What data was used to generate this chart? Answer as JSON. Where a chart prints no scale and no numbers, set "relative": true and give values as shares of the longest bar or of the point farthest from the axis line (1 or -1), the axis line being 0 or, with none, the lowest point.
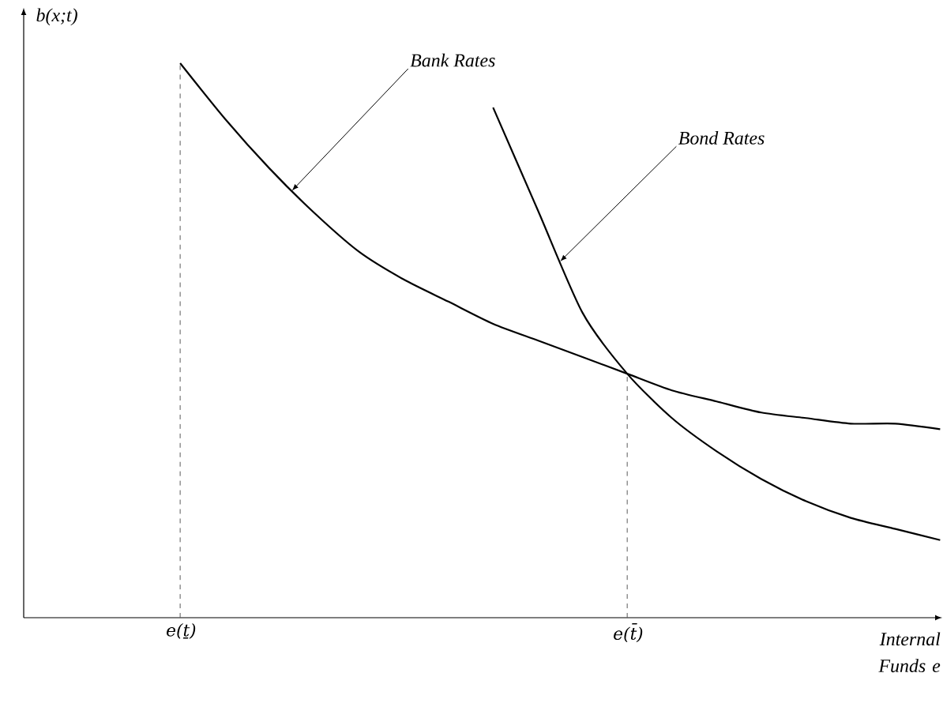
{
  "chart_data": {
    "type": "line",
    "relative": true,
    "xlabel": "Internal Funds e",
    "ylabel": "b(x;t)",
    "categories": [
      "e(ṯ)",
      null,
      null,
      null,
      null,
      null,
      null,
      null,
      null,
      null,
      "e(t̄)",
      null,
      null,
      null,
      null,
      null,
      null,
      null
    ],
    "series": [
      {
        "color": "#000000",
        "values": [
          1.0,
          0.9,
          0.81,
          0.73,
          0.66,
          0.61,
          0.57,
          0.53,
          0.5,
          0.47,
          0.44,
          0.41,
          0.39,
          0.37,
          0.36,
          0.35,
          0.35,
          0.34
        ]
      },
      {
        "color": "#000000",
        "values": [
          null,
          null,
          null,
          null,
          null,
          null,
          null,
          0.92,
          0.735,
          0.55,
          0.44,
          0.36,
          0.3,
          0.25,
          0.21,
          0.18,
          0.16,
          0.14
        ]
      }
    ],
    "annotations": [
      "Bank Rates",
      "Bond Rates"
    ],
    "ref_lines": [
      {
        "axis": "x",
        "value": "e(ṯ)",
        "line_style": "dashed"
      },
      {
        "axis": "x",
        "value": "e(t̄)",
        "line_style": "dashed"
      }
    ],
    "marker": "none",
    "line_style": "solid",
    "grid": false
  }
}
